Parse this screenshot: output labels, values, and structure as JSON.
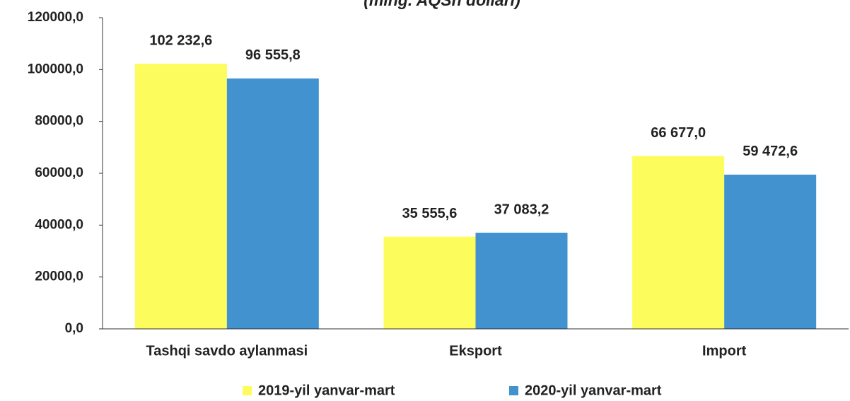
{
  "chart_data": {
    "type": "bar",
    "subtitle": "(ming. AQSh dollari)",
    "categories": [
      "Tashqi savdo aylanmasi",
      "Eksport",
      "Import"
    ],
    "series": [
      {
        "name": "2019-yil yanvar-mart",
        "color": "#fcfc5c",
        "values": [
          102232.6,
          35555.6,
          66677.0
        ],
        "value_labels": [
          "102 232,6",
          "35 555,6",
          "66 677,0"
        ]
      },
      {
        "name": "2020-yil yanvar-mart",
        "color": "#4292d0",
        "values": [
          96555.8,
          37083.2,
          59472.6
        ],
        "value_labels": [
          "96 555,8",
          "37 083,2",
          "59 472,6"
        ]
      }
    ],
    "ylim": [
      0,
      120000
    ],
    "yticks": [
      {
        "value": 0,
        "label": "0,0"
      },
      {
        "value": 20000,
        "label": "20000,0"
      },
      {
        "value": 40000,
        "label": "40000,0"
      },
      {
        "value": 60000,
        "label": "60000,0"
      },
      {
        "value": 80000,
        "label": "80000,0"
      },
      {
        "value": 100000,
        "label": "100000,0"
      },
      {
        "value": 120000,
        "label": "120000,0"
      }
    ],
    "grid": false,
    "legend": "bottom"
  }
}
